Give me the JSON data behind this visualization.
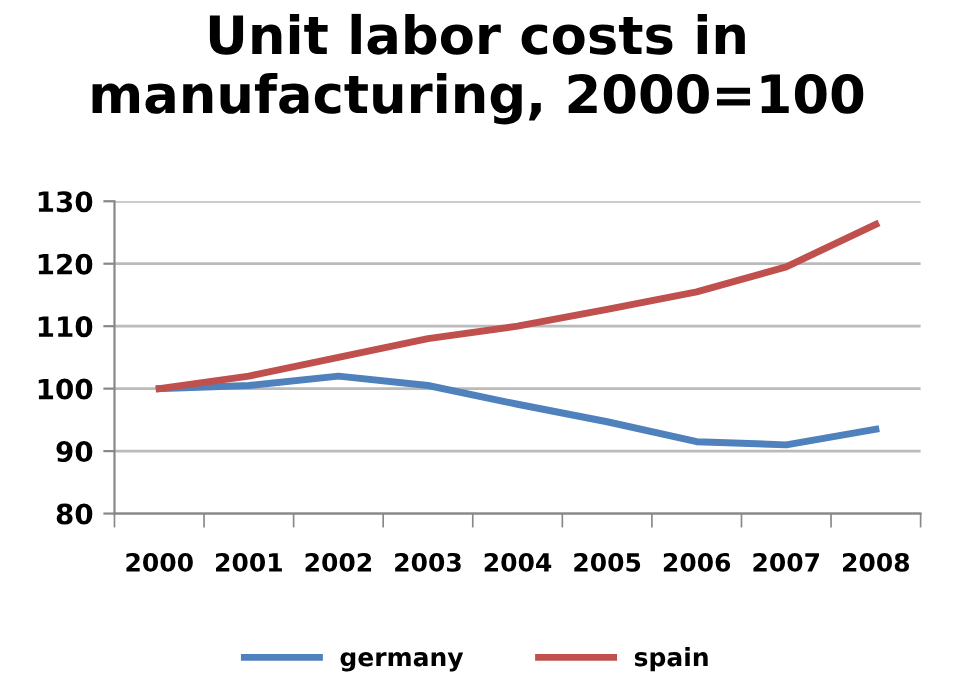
{
  "chart_data": {
    "type": "line",
    "title": "Unit labor costs in\nmanufacturing, 2000=100",
    "categories": [
      "2000",
      "2001",
      "2002",
      "2003",
      "2004",
      "2005",
      "2006",
      "2007",
      "2008"
    ],
    "series": [
      {
        "name": "germany",
        "color": "#4f81bd",
        "values": [
          100,
          100.5,
          102,
          100.5,
          97.5,
          94.7,
          91.5,
          91,
          93.5
        ]
      },
      {
        "name": "spain",
        "color": "#c0504d",
        "values": [
          100,
          102,
          105,
          108,
          110,
          112.7,
          115.5,
          119.5,
          126.3
        ]
      }
    ],
    "ylim": [
      80,
      130
    ],
    "yticks": [
      80,
      90,
      100,
      110,
      120,
      130
    ],
    "grid": "y",
    "legend": "bottom"
  }
}
